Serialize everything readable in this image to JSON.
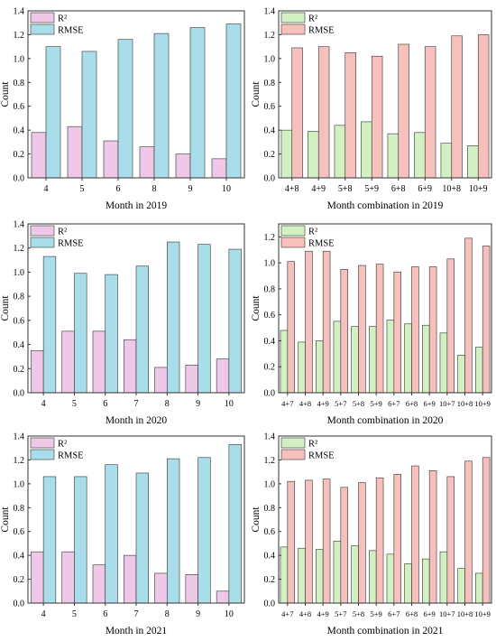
{
  "colors": {
    "r2_pink": "#eec8e6",
    "rmse_blue": "#a9dde9",
    "r2_green": "#d3f0c2",
    "rmse_red": "#f6c0bd",
    "stroke": "#333333"
  },
  "chart_data": [
    {
      "type": "bar",
      "xlabel": "Month in 2019",
      "ylabel": "Count",
      "ylim": [
        0,
        1.4
      ],
      "yticks": [
        "0.0",
        "0.2",
        "0.4",
        "0.6",
        "0.8",
        "1.0",
        "1.2",
        "1.4"
      ],
      "categories": [
        "4",
        "5",
        "6",
        "8",
        "9",
        "10"
      ],
      "legend": "top-left",
      "grid": false,
      "series": [
        {
          "name": "R²",
          "color": "#eec8e6",
          "values": [
            0.38,
            0.43,
            0.31,
            0.26,
            0.2,
            0.16
          ]
        },
        {
          "name": "RMSE",
          "color": "#a9dde9",
          "values": [
            1.1,
            1.06,
            1.16,
            1.21,
            1.26,
            1.29
          ]
        }
      ]
    },
    {
      "type": "bar",
      "xlabel": "Month combination in 2019",
      "ylabel": "Count",
      "ylim": [
        0,
        1.4
      ],
      "yticks": [
        "0.0",
        "0.2",
        "0.4",
        "0.6",
        "0.8",
        "1.0",
        "1.2",
        "1.4"
      ],
      "categories": [
        "4+8",
        "4+9",
        "5+8",
        "5+9",
        "6+8",
        "6+9",
        "10+8",
        "10+9"
      ],
      "legend": "top-left",
      "grid": false,
      "series": [
        {
          "name": "R²",
          "color": "#d3f0c2",
          "values": [
            0.4,
            0.39,
            0.44,
            0.47,
            0.37,
            0.38,
            0.29,
            0.27
          ]
        },
        {
          "name": "RMSE",
          "color": "#f6c0bd",
          "values": [
            1.09,
            1.1,
            1.05,
            1.02,
            1.12,
            1.1,
            1.19,
            1.2
          ]
        }
      ]
    },
    {
      "type": "bar",
      "xlabel": "Month in 2020",
      "ylabel": "Count",
      "ylim": [
        0,
        1.4
      ],
      "yticks": [
        "0.0",
        "0.2",
        "0.4",
        "0.6",
        "0.8",
        "1.0",
        "1.2",
        "1.4"
      ],
      "categories": [
        "4",
        "5",
        "6",
        "7",
        "8",
        "9",
        "10"
      ],
      "legend": "top-left",
      "grid": false,
      "series": [
        {
          "name": "R²",
          "color": "#eec8e6",
          "values": [
            0.35,
            0.51,
            0.51,
            0.44,
            0.21,
            0.23,
            0.28
          ]
        },
        {
          "name": "RMSE",
          "color": "#a9dde9",
          "values": [
            1.13,
            0.99,
            0.98,
            1.05,
            1.25,
            1.23,
            1.19
          ]
        }
      ]
    },
    {
      "type": "bar",
      "xlabel": "Month combination in 2020",
      "ylabel": "Count",
      "ylim": [
        0,
        1.3
      ],
      "yticks": [
        "0.0",
        "0.2",
        "0.4",
        "0.6",
        "0.8",
        "1.0",
        "1.2"
      ],
      "categories": [
        "4+7",
        "4+8",
        "4+9",
        "5+7",
        "5+8",
        "5+9",
        "6+7",
        "6+8",
        "6+9",
        "10+7",
        "10+8",
        "10+9"
      ],
      "legend": "top-left",
      "grid": false,
      "series": [
        {
          "name": "R²",
          "color": "#d3f0c2",
          "values": [
            0.48,
            0.39,
            0.4,
            0.55,
            0.51,
            0.51,
            0.56,
            0.53,
            0.52,
            0.46,
            0.29,
            0.35
          ]
        },
        {
          "name": "RMSE",
          "color": "#f6c0bd",
          "values": [
            1.01,
            1.09,
            1.09,
            0.95,
            0.98,
            0.99,
            0.93,
            0.97,
            0.97,
            1.03,
            1.19,
            1.13
          ]
        }
      ]
    },
    {
      "type": "bar",
      "xlabel": "Month in 2021",
      "ylabel": "Count",
      "ylim": [
        0,
        1.4
      ],
      "yticks": [
        "0.0",
        "0.2",
        "0.4",
        "0.6",
        "0.8",
        "1.0",
        "1.2",
        "1.4"
      ],
      "categories": [
        "4",
        "5",
        "6",
        "7",
        "8",
        "9",
        "10"
      ],
      "legend": "top-left",
      "grid": false,
      "series": [
        {
          "name": "R²",
          "color": "#eec8e6",
          "values": [
            0.43,
            0.43,
            0.32,
            0.4,
            0.25,
            0.24,
            0.1
          ]
        },
        {
          "name": "RMSE",
          "color": "#a9dde9",
          "values": [
            1.06,
            1.06,
            1.16,
            1.09,
            1.21,
            1.22,
            1.33
          ]
        }
      ]
    },
    {
      "type": "bar",
      "xlabel": "Month combination in 2021",
      "ylabel": "Count",
      "ylim": [
        0,
        1.4
      ],
      "yticks": [
        "0.0",
        "0.2",
        "0.4",
        "0.6",
        "0.8",
        "1.0",
        "1.2",
        "1.4"
      ],
      "categories": [
        "4+7",
        "4+8",
        "4+9",
        "5+7",
        "5+8",
        "5+9",
        "6+7",
        "6+8",
        "6+9",
        "10+7",
        "10+8",
        "10+9"
      ],
      "legend": "top-left",
      "grid": false,
      "series": [
        {
          "name": "R²",
          "color": "#d3f0c2",
          "values": [
            0.47,
            0.46,
            0.45,
            0.52,
            0.48,
            0.44,
            0.41,
            0.33,
            0.37,
            0.43,
            0.29,
            0.25
          ]
        },
        {
          "name": "RMSE",
          "color": "#f6c0bd",
          "values": [
            1.02,
            1.03,
            1.04,
            0.97,
            1.01,
            1.05,
            1.08,
            1.15,
            1.11,
            1.06,
            1.19,
            1.22
          ]
        }
      ]
    }
  ]
}
